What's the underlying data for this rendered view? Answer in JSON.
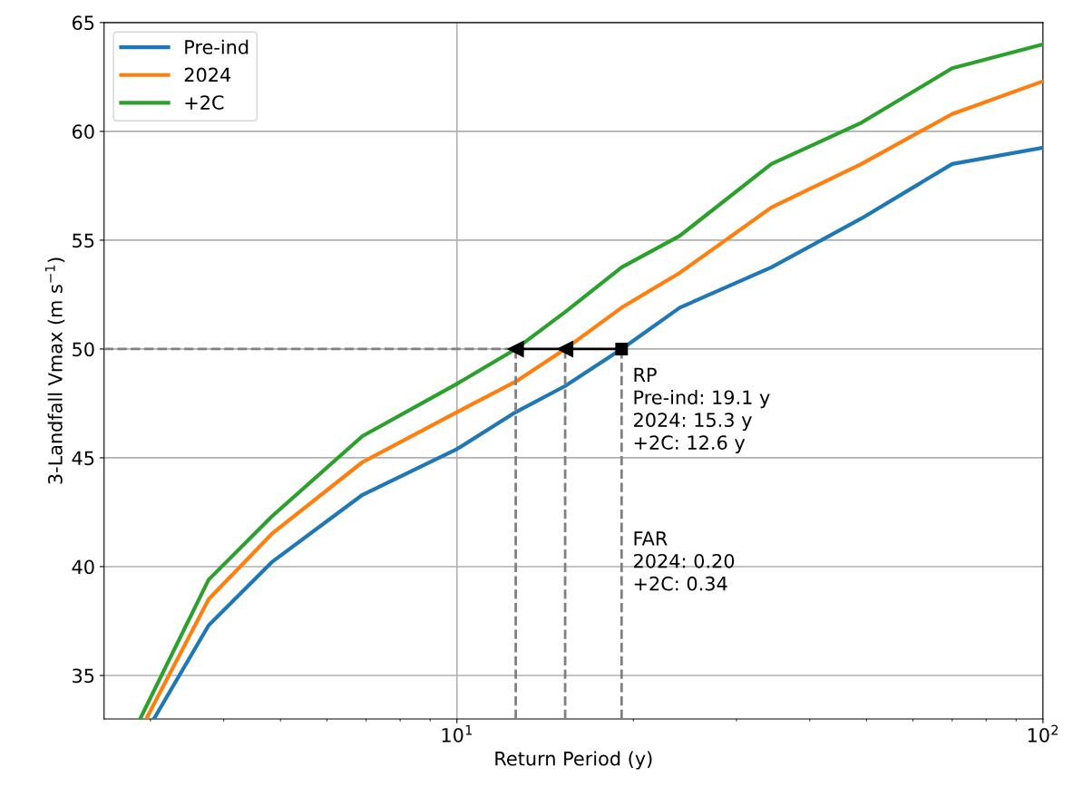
{
  "chart_data": {
    "type": "line",
    "xlabel": "Return Period (y)",
    "ylabel": "3-Landfall Vmax (m s$^{−1}$)",
    "log": "x",
    "xlim": [
      2.5,
      100
    ],
    "xticks": [
      {
        "value": 10,
        "label": "10$^{1}$"
      },
      {
        "value": 100,
        "label": "10$^{2}$"
      }
    ],
    "ylim": [
      33,
      65
    ],
    "yticks": [
      35,
      40,
      45,
      50,
      55,
      60,
      65
    ],
    "grid": true,
    "legend": "top left",
    "series": [
      {
        "name": "Pre-ind",
        "color": "#1f77b4",
        "x": [
          3.04,
          3.77,
          4.83,
          6.9,
          10,
          12.6,
          15.3,
          19.1,
          24.0,
          34.4,
          49,
          70,
          100
        ],
        "values": [
          33.0,
          37.3,
          40.2,
          43.3,
          45.4,
          47.1,
          48.3,
          50.0,
          51.9,
          53.75,
          56.0,
          58.5,
          59.25
        ]
      },
      {
        "name": "2024",
        "color": "#ff7f0e",
        "x": [
          2.95,
          3.77,
          4.83,
          6.9,
          10,
          12.6,
          15.3,
          19.1,
          24.0,
          34.4,
          49,
          70,
          100
        ],
        "values": [
          33.0,
          38.5,
          41.5,
          44.8,
          47.1,
          48.5,
          50.0,
          51.9,
          53.5,
          56.5,
          58.5,
          60.8,
          62.3
        ]
      },
      {
        "name": "+2C",
        "color": "#2ca02c",
        "x": [
          2.88,
          3.77,
          4.83,
          6.9,
          10,
          12.6,
          15.3,
          19.1,
          24.0,
          34.4,
          49,
          70,
          100
        ],
        "values": [
          33.0,
          39.4,
          42.3,
          46.0,
          48.4,
          50.0,
          51.7,
          53.75,
          55.2,
          58.5,
          60.4,
          62.9,
          64.0
        ]
      },
      {
        "type": "line",
        "color": "#808080",
        "line_style": "dashed",
        "x": [
          2.5,
          12.6
        ],
        "values": [
          50,
          50
        ]
      },
      {
        "type": "line",
        "color": "#808080",
        "line_style": "dashed",
        "x": [
          12.6,
          12.6
        ],
        "values": [
          33,
          50
        ]
      },
      {
        "type": "line",
        "color": "#808080",
        "line_style": "dashed",
        "x": [
          15.3,
          15.3
        ],
        "values": [
          33,
          50
        ]
      },
      {
        "type": "line",
        "color": "#808080",
        "line_style": "dashed",
        "x": [
          19.1,
          19.1
        ],
        "values": [
          33,
          50
        ]
      },
      {
        "type": "line",
        "color": "#000000",
        "marker": "triangle",
        "x": [
          19.1,
          15.3,
          12.6
        ],
        "values": [
          50,
          50,
          50
        ]
      },
      {
        "type": "scatter",
        "color": "#000000",
        "marker": "square",
        "x": [
          19.1
        ],
        "values": [
          50
        ]
      }
    ],
    "annotations": [
      "RP\nPre-ind: 19.1 y\n2024: 15.3 y\n+2C: 12.6 y",
      "FAR\n2024: 0.20\n+2C: 0.34"
    ]
  }
}
